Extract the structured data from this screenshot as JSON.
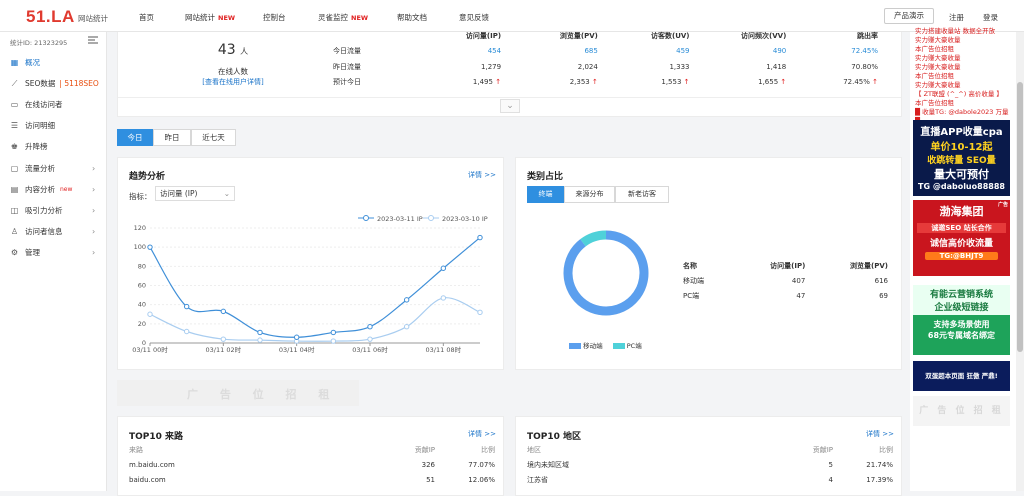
{
  "header": {
    "logo": "51.LA",
    "logo_sub": "网站统计",
    "nav": [
      {
        "label": "首页",
        "new": ""
      },
      {
        "label": "网站统计",
        "new": "NEW"
      },
      {
        "label": "控制台",
        "new": ""
      },
      {
        "label": "灵雀监控",
        "new": "NEW"
      },
      {
        "label": "帮助文档",
        "new": ""
      },
      {
        "label": "意见反馈",
        "new": ""
      }
    ],
    "demo": "产品演示",
    "register": "注册",
    "login": "登录"
  },
  "sidebar": {
    "site_id": "统计ID: 21323295",
    "items": [
      {
        "label": "概况",
        "icon": "grid-icon",
        "extra": "",
        "arrow": ""
      },
      {
        "label": "SEO数据",
        "icon": "chart-line-icon",
        "extra": "| 5118SEO",
        "arrow": ""
      },
      {
        "label": "在线访问者",
        "icon": "chat-icon",
        "extra": "",
        "arrow": ""
      },
      {
        "label": "访问明细",
        "icon": "list-icon",
        "extra": "",
        "arrow": ""
      },
      {
        "label": "升降榜",
        "icon": "medal-icon",
        "extra": "",
        "arrow": ""
      },
      {
        "label": "流量分析",
        "icon": "monitor-icon",
        "extra": "",
        "arrow": "›"
      },
      {
        "label": "内容分析",
        "icon": "doc-icon",
        "extra": "new",
        "arrow": "›"
      },
      {
        "label": "吸引力分析",
        "icon": "magnet-icon",
        "extra": "",
        "arrow": "›"
      },
      {
        "label": "访问者信息",
        "icon": "user-icon",
        "extra": "",
        "arrow": "›"
      },
      {
        "label": "管理",
        "icon": "gear-icon",
        "extra": "",
        "arrow": "›"
      }
    ]
  },
  "overview": {
    "online_count": "43",
    "online_unit": "人",
    "online_label": "在线人数",
    "online_link": "[查看在线用户详情]",
    "headers": [
      "",
      "访问量(IP)",
      "浏览量(PV)",
      "访客数(UV)",
      "访问频次(VV)",
      "跳出率"
    ],
    "rows": [
      {
        "label": "今日流量",
        "ip": "454",
        "pv": "685",
        "uv": "459",
        "vv": "490",
        "bounce": "72.45%"
      },
      {
        "label": "昨日流量",
        "ip": "1,279",
        "pv": "2,024",
        "uv": "1,333",
        "vv": "1,418",
        "bounce": "70.80%"
      },
      {
        "label": "预计今日",
        "ip": "1,495",
        "pv": "2,353",
        "uv": "1,553",
        "vv": "1,655",
        "bounce": "72.45%"
      }
    ],
    "expand": "⌄"
  },
  "range_tabs": [
    "今日",
    "昨日",
    "近七天"
  ],
  "trend": {
    "title": "趋势分析",
    "more": "详情 >>",
    "metric_label": "指标：",
    "metric_value": "访问量 (IP)",
    "legend": [
      "2023-03-11 IP",
      "2023-03-10 IP"
    ]
  },
  "category": {
    "title": "类别占比",
    "more": "详情 >>",
    "tabs": [
      "终端",
      "来源分布",
      "新老访客"
    ],
    "table_headers": [
      "名称",
      "访问量(IP)",
      "浏览量(PV)"
    ],
    "rows": [
      {
        "name": "移动端",
        "ip": "407",
        "pv": "616"
      },
      {
        "name": "PC端",
        "ip": "47",
        "pv": "69"
      }
    ],
    "legend": [
      "移动端",
      "PC端"
    ],
    "colors": [
      "#5b9fee",
      "#4fd1d9"
    ]
  },
  "chart_data": {
    "type": "line",
    "x": [
      "03/11 00时",
      "03/11 01时",
      "03/11 02时",
      "03/11 03时",
      "03/11 04时",
      "03/11 05时",
      "03/11 06时",
      "03/11 07时",
      "03/11 08时",
      "03/11 09时"
    ],
    "xticks": [
      "03/11 00时",
      "03/11 02时",
      "03/11 04时",
      "03/11 06时",
      "03/11 08时"
    ],
    "yticks": [
      0,
      20,
      40,
      60,
      80,
      100,
      120
    ],
    "ylim": [
      0,
      120
    ],
    "series": [
      {
        "name": "2023-03-11 IP",
        "color": "#3f8fd8",
        "values": [
          100,
          38,
          33,
          11,
          6,
          11,
          17,
          45,
          78,
          110
        ]
      },
      {
        "name": "2023-03-10 IP",
        "color": "#a9cdf0",
        "values": [
          30,
          12,
          4,
          3,
          2,
          2,
          4,
          17,
          47,
          32
        ]
      }
    ]
  },
  "ad_banner": "广 告 位 招 租",
  "top_source": {
    "title": "TOP10 来路",
    "more": "详情 >>",
    "headers": [
      "来路",
      "贡献IP",
      "比例"
    ],
    "rows": [
      {
        "name": "m.baidu.com",
        "ip": "326",
        "pct": "77.07%"
      },
      {
        "name": "baidu.com",
        "ip": "51",
        "pct": "12.06%"
      }
    ]
  },
  "top_region": {
    "title": "TOP10 地区",
    "more": "详情 >>",
    "headers": [
      "地区",
      "贡献IP",
      "比例"
    ],
    "rows": [
      {
        "name": "境内未知区域",
        "ip": "5",
        "pct": "21.74%"
      },
      {
        "name": "江苏省",
        "ip": "4",
        "pct": "17.39%"
      }
    ]
  },
  "right_ads": {
    "text_lines": [
      "实力搭建收量站 数据全开放",
      "实力赚大豪收量",
      "本广告位招租",
      "实力赚大豪收量",
      "实力赚大豪收量",
      "本广告位招租",
      "实力赚大豪收量",
      "【 ZT联盟 (^_^) 高价收量 】",
      "本广告位招租",
      "█ 收量TG: @dabole2023 万量 █"
    ],
    "ad1": [
      "直播APP收量cpa",
      "单价10-12起",
      "收跳转量 SEO量",
      "量大可预付",
      "TG @daboluo88888"
    ],
    "ad2": [
      "渤海集团",
      "诚邀SEO 站长合作",
      "诚信高价收流量",
      "TG:@BHJT9"
    ],
    "ad2_tag": "广告",
    "ad3": [
      "有能云营销系统",
      "企业级短链接",
      "支持多场景使用",
      "68元专属域名绑定"
    ],
    "ad4": "双蛋超本页面 狂傲 严鼎!",
    "ad_wm": "广 告 位 招 租"
  }
}
